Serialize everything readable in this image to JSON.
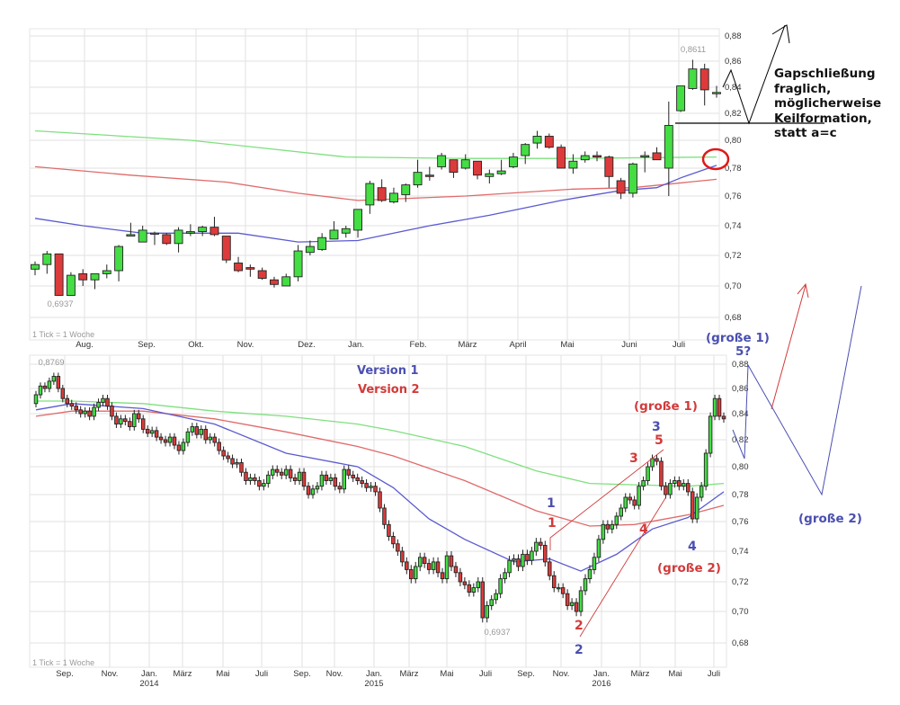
{
  "chart_data": [
    {
      "type": "candlestick",
      "title": "",
      "period_note": "1 Tick = 1 Woche",
      "ylim": [
        0.68,
        0.88
      ],
      "y_ticks": [
        "0,88",
        "0,86",
        "0,84",
        "0,82",
        "0,80",
        "0,78",
        "0,76",
        "0,74",
        "0,72",
        "0,70",
        "0,68"
      ],
      "x_ticks": [
        "Aug.",
        "Sep.",
        "Okt.",
        "Nov.",
        "Dez.",
        "Jan.",
        "Feb.",
        "März",
        "April",
        "Mai",
        "Juni",
        "Juli"
      ],
      "high_label": "0,8611",
      "low_label": "0,6937",
      "ohlc": [
        [
          0.711,
          0.716,
          0.707,
          0.714
        ],
        [
          0.714,
          0.723,
          0.708,
          0.721
        ],
        [
          0.721,
          0.721,
          0.6937,
          0.694
        ],
        [
          0.694,
          0.709,
          0.694,
          0.707
        ],
        [
          0.708,
          0.711,
          0.7,
          0.704
        ],
        [
          0.704,
          0.708,
          0.698,
          0.708
        ],
        [
          0.708,
          0.714,
          0.705,
          0.71
        ],
        [
          0.71,
          0.727,
          0.703,
          0.726
        ],
        [
          0.733,
          0.742,
          0.733,
          0.734
        ],
        [
          0.729,
          0.74,
          0.729,
          0.737
        ],
        [
          0.735,
          0.736,
          0.727,
          0.735
        ],
        [
          0.734,
          0.735,
          0.727,
          0.728
        ],
        [
          0.728,
          0.739,
          0.722,
          0.737
        ],
        [
          0.735,
          0.741,
          0.733,
          0.736
        ],
        [
          0.736,
          0.74,
          0.733,
          0.739
        ],
        [
          0.739,
          0.746,
          0.733,
          0.734
        ],
        [
          0.733,
          0.733,
          0.715,
          0.717
        ],
        [
          0.715,
          0.719,
          0.709,
          0.71
        ],
        [
          0.712,
          0.714,
          0.706,
          0.711
        ],
        [
          0.71,
          0.712,
          0.704,
          0.705
        ],
        [
          0.704,
          0.706,
          0.699,
          0.701
        ],
        [
          0.7,
          0.708,
          0.7,
          0.706
        ],
        [
          0.706,
          0.727,
          0.703,
          0.723
        ],
        [
          0.722,
          0.73,
          0.72,
          0.726
        ],
        [
          0.724,
          0.735,
          0.723,
          0.732
        ],
        [
          0.731,
          0.743,
          0.731,
          0.737
        ],
        [
          0.735,
          0.74,
          0.732,
          0.738
        ],
        [
          0.737,
          0.751,
          0.732,
          0.751
        ],
        [
          0.754,
          0.771,
          0.748,
          0.769
        ],
        [
          0.766,
          0.772,
          0.756,
          0.757
        ],
        [
          0.756,
          0.766,
          0.755,
          0.762
        ],
        [
          0.761,
          0.769,
          0.756,
          0.768
        ],
        [
          0.768,
          0.786,
          0.766,
          0.777
        ],
        [
          0.775,
          0.781,
          0.771,
          0.774
        ],
        [
          0.781,
          0.791,
          0.779,
          0.789
        ],
        [
          0.786,
          0.786,
          0.773,
          0.777
        ],
        [
          0.78,
          0.79,
          0.779,
          0.786
        ],
        [
          0.785,
          0.785,
          0.772,
          0.775
        ],
        [
          0.774,
          0.779,
          0.769,
          0.776
        ],
        [
          0.776,
          0.786,
          0.775,
          0.778
        ],
        [
          0.781,
          0.791,
          0.78,
          0.788
        ],
        [
          0.789,
          0.798,
          0.783,
          0.797
        ],
        [
          0.798,
          0.807,
          0.794,
          0.803
        ],
        [
          0.803,
          0.805,
          0.794,
          0.795
        ],
        [
          0.795,
          0.797,
          0.78,
          0.78
        ],
        [
          0.78,
          0.79,
          0.776,
          0.785
        ],
        [
          0.786,
          0.792,
          0.784,
          0.789
        ],
        [
          0.789,
          0.792,
          0.785,
          0.788
        ],
        [
          0.788,
          0.789,
          0.766,
          0.774
        ],
        [
          0.771,
          0.773,
          0.758,
          0.762
        ],
        [
          0.762,
          0.784,
          0.759,
          0.783
        ],
        [
          0.788,
          0.792,
          0.777,
          0.789
        ],
        [
          0.791,
          0.795,
          0.786,
          0.786
        ],
        [
          0.78,
          0.829,
          0.76,
          0.811
        ],
        [
          0.822,
          0.841,
          0.821,
          0.841
        ],
        [
          0.839,
          0.8611,
          0.838,
          0.854
        ],
        [
          0.854,
          0.858,
          0.826,
          0.838
        ],
        [
          0.835,
          0.841,
          0.832,
          0.836
        ]
      ],
      "moving_averages": [
        {
          "name": "MA long",
          "color": "#7ee07e",
          "points": [
            [
              0,
              0.807
            ],
            [
              13,
              0.8
            ],
            [
              26,
              0.788
            ],
            [
              36,
              0.787
            ],
            [
              45,
              0.787
            ],
            [
              57,
              0.788
            ]
          ]
        },
        {
          "name": "MA mid",
          "color": "#e06a6a",
          "points": [
            [
              0,
              0.781
            ],
            [
              8,
              0.775
            ],
            [
              16,
              0.77
            ],
            [
              22,
              0.762
            ],
            [
              27,
              0.757
            ],
            [
              36,
              0.76
            ],
            [
              45,
              0.765
            ],
            [
              50,
              0.766
            ],
            [
              57,
              0.772
            ]
          ]
        },
        {
          "name": "MA short",
          "color": "#5a5ad0",
          "points": [
            [
              0,
              0.745
            ],
            [
              4,
              0.74
            ],
            [
              9,
              0.735
            ],
            [
              17,
              0.735
            ],
            [
              22,
              0.729
            ],
            [
              27,
              0.73
            ],
            [
              33,
              0.74
            ],
            [
              38,
              0.747
            ],
            [
              44,
              0.757
            ],
            [
              49,
              0.764
            ],
            [
              52,
              0.766
            ],
            [
              54,
              0.773
            ],
            [
              57,
              0.782
            ]
          ]
        }
      ]
    },
    {
      "type": "candlestick",
      "title": "",
      "period_note": "1 Tick = 1 Woche",
      "ylim": [
        0.68,
        0.88
      ],
      "y_ticks": [
        "0,88",
        "0,86",
        "0,84",
        "0,82",
        "0,80",
        "0,78",
        "0,76",
        "0,74",
        "0,72",
        "0,70",
        "0,68"
      ],
      "x_ticks": [
        {
          "label": "Sep.",
          "year": ""
        },
        {
          "label": "Nov.",
          "year": ""
        },
        {
          "label": "Jan.",
          "year": "2014"
        },
        {
          "label": "März",
          "year": ""
        },
        {
          "label": "Mai",
          "year": ""
        },
        {
          "label": "Juli",
          "year": ""
        },
        {
          "label": "Sep.",
          "year": ""
        },
        {
          "label": "Nov.",
          "year": ""
        },
        {
          "label": "Jan.",
          "year": "2015"
        },
        {
          "label": "März",
          "year": ""
        },
        {
          "label": "Mai",
          "year": ""
        },
        {
          "label": "Juli",
          "year": ""
        },
        {
          "label": "Sep.",
          "year": ""
        },
        {
          "label": "Nov.",
          "year": ""
        },
        {
          "label": "Jan.",
          "year": "2016"
        },
        {
          "label": "März",
          "year": ""
        },
        {
          "label": "Mai",
          "year": ""
        },
        {
          "label": "Juli",
          "year": ""
        }
      ],
      "high_label": "0,8769",
      "low_label": "0,6937",
      "first_open": 0.848,
      "close": [
        0.855,
        0.862,
        0.86,
        0.866,
        0.87,
        0.86,
        0.852,
        0.848,
        0.846,
        0.843,
        0.84,
        0.842,
        0.838,
        0.845,
        0.849,
        0.852,
        0.846,
        0.838,
        0.832,
        0.836,
        0.834,
        0.83,
        0.84,
        0.836,
        0.828,
        0.825,
        0.827,
        0.822,
        0.82,
        0.818,
        0.822,
        0.816,
        0.812,
        0.818,
        0.826,
        0.83,
        0.824,
        0.828,
        0.82,
        0.822,
        0.818,
        0.812,
        0.808,
        0.806,
        0.802,
        0.803,
        0.796,
        0.79,
        0.792,
        0.79,
        0.786,
        0.788,
        0.794,
        0.798,
        0.796,
        0.794,
        0.798,
        0.792,
        0.79,
        0.796,
        0.786,
        0.78,
        0.784,
        0.786,
        0.794,
        0.79,
        0.792,
        0.786,
        0.784,
        0.798,
        0.794,
        0.792,
        0.79,
        0.788,
        0.785,
        0.786,
        0.782,
        0.77,
        0.758,
        0.75,
        0.745,
        0.74,
        0.733,
        0.728,
        0.722,
        0.73,
        0.736,
        0.732,
        0.728,
        0.733,
        0.726,
        0.722,
        0.737,
        0.73,
        0.726,
        0.72,
        0.718,
        0.713,
        0.716,
        0.72,
        0.696,
        0.704,
        0.708,
        0.712,
        0.722,
        0.726,
        0.734,
        0.735,
        0.73,
        0.738,
        0.734,
        0.74,
        0.746,
        0.744,
        0.733,
        0.724,
        0.716,
        0.716,
        0.712,
        0.704,
        0.706,
        0.7,
        0.714,
        0.722,
        0.728,
        0.736,
        0.748,
        0.758,
        0.755,
        0.758,
        0.764,
        0.77,
        0.778,
        0.776,
        0.772,
        0.786,
        0.79,
        0.8,
        0.806,
        0.804,
        0.786,
        0.78,
        0.788,
        0.79,
        0.786,
        0.788,
        0.782,
        0.762,
        0.778,
        0.786,
        0.81,
        0.838,
        0.852,
        0.838,
        0.836
      ],
      "moving_averages": [
        {
          "name": "MA long",
          "color": "#7ee07e",
          "points": [
            [
              0,
              0.85
            ],
            [
              8,
              0.85
            ],
            [
              24,
              0.848
            ],
            [
              40,
              0.842
            ],
            [
              56,
              0.838
            ],
            [
              72,
              0.832
            ],
            [
              80,
              0.827
            ],
            [
              96,
              0.815
            ],
            [
              112,
              0.797
            ],
            [
              124,
              0.788
            ],
            [
              134,
              0.787
            ],
            [
              146,
              0.786
            ],
            [
              154,
              0.788
            ]
          ]
        },
        {
          "name": "MA mid",
          "color": "#e06a6a",
          "points": [
            [
              0,
              0.838
            ],
            [
              8,
              0.842
            ],
            [
              24,
              0.842
            ],
            [
              40,
              0.836
            ],
            [
              56,
              0.826
            ],
            [
              72,
              0.815
            ],
            [
              80,
              0.808
            ],
            [
              96,
              0.79
            ],
            [
              112,
              0.768
            ],
            [
              124,
              0.757
            ],
            [
              134,
              0.758
            ],
            [
              146,
              0.765
            ],
            [
              154,
              0.772
            ]
          ]
        },
        {
          "name": "MA short",
          "color": "#5a5ad0",
          "points": [
            [
              0,
              0.843
            ],
            [
              8,
              0.848
            ],
            [
              24,
              0.844
            ],
            [
              40,
              0.832
            ],
            [
              56,
              0.81
            ],
            [
              72,
              0.8
            ],
            [
              80,
              0.785
            ],
            [
              88,
              0.762
            ],
            [
              96,
              0.748
            ],
            [
              107,
              0.733
            ],
            [
              115,
              0.735
            ],
            [
              122,
              0.727
            ],
            [
              130,
              0.738
            ],
            [
              138,
              0.755
            ],
            [
              146,
              0.763
            ],
            [
              154,
              0.782
            ]
          ]
        }
      ]
    }
  ],
  "annotations": {
    "gap_note": [
      "Gapschließung",
      "fraglich,",
      "möglicherweise",
      "Keilformation,",
      "statt a=c"
    ],
    "version1": "Version 1",
    "version2": "Version 2",
    "wave_labels": {
      "blue_1": "1",
      "red_1": "1",
      "red_2": "2",
      "blue_2": "2",
      "red_3": "3",
      "blue_3": "3",
      "red_5": "5",
      "red_4": "4",
      "blue_4": "4",
      "red_grosse_1": "(große 1)",
      "red_grosse_2": "(große 2)",
      "blue_grosse_1": "(große 1)",
      "blue_5q": "5?",
      "blue_grosse_2": "(große 2)"
    },
    "colors": {
      "blue": "#4a4fb0",
      "red": "#d23a3a",
      "candle_up": "#44dd44",
      "candle_down": "#dd3b3b"
    }
  }
}
